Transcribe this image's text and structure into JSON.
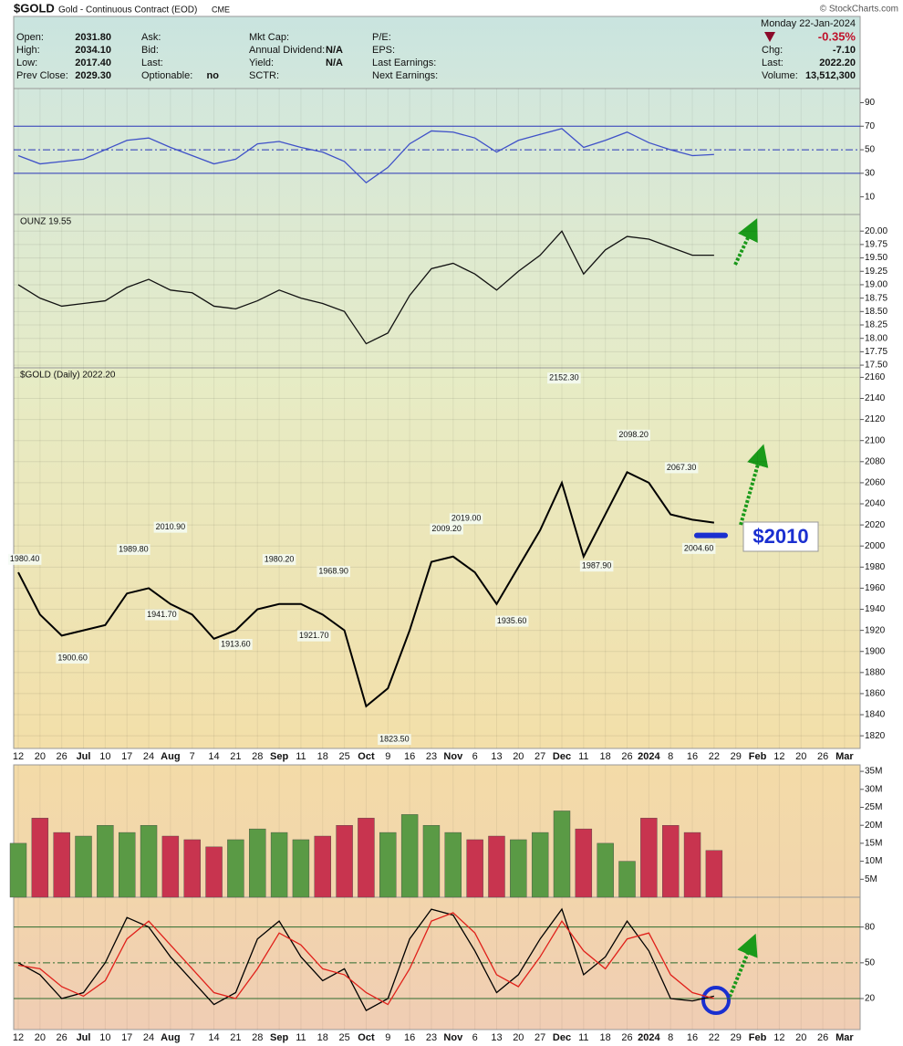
{
  "header": {
    "symbol": "$GOLD",
    "name": "Gold - Continuous Contract (EOD)",
    "exchange": "CME",
    "watermark": "© StockCharts.com",
    "date": "Monday  22-Jan-2024",
    "change_pct": "-0.35%",
    "columns": [
      [
        {
          "label": "Open:",
          "value": "2031.80"
        },
        {
          "label": "High:",
          "value": "2034.10"
        },
        {
          "label": "Low:",
          "value": "2017.40"
        },
        {
          "label": "Prev Close:",
          "value": "2029.30"
        }
      ],
      [
        {
          "label": "Ask:"
        },
        {
          "label": "Bid:"
        },
        {
          "label": "Last:"
        },
        {
          "label": "Optionable:",
          "value": "no"
        }
      ],
      [
        {
          "label": "Mkt Cap:"
        },
        {
          "label": "Annual Dividend:",
          "value": "N/A"
        },
        {
          "label": "Yield:",
          "value": "N/A"
        },
        {
          "label": "SCTR:"
        }
      ],
      [
        {
          "label": "P/E:"
        },
        {
          "label": "EPS:"
        },
        {
          "label": "Last Earnings:"
        },
        {
          "label": "Next Earnings:"
        }
      ]
    ],
    "right": [
      {
        "label": "Chg:",
        "value": "-7.10"
      },
      {
        "label": "Last:",
        "value": "2022.20"
      },
      {
        "label": "Volume:",
        "value": "13,512,300"
      }
    ]
  },
  "chart_data": [
    {
      "type": "line",
      "ylim": [
        -5,
        102
      ],
      "yticks": [
        10,
        30,
        50,
        70,
        90
      ],
      "reference_lines": [
        30,
        50,
        70
      ],
      "series": [
        {
          "color": "#3f51c8",
          "values": [
            45,
            38,
            40,
            42,
            50,
            58,
            60,
            52,
            45,
            38,
            42,
            55,
            57,
            52,
            48,
            40,
            22,
            35,
            55,
            66,
            65,
            60,
            48,
            58,
            63,
            68,
            52,
            58,
            65,
            56,
            50,
            45,
            46,
            null,
            null,
            null,
            null,
            null,
            null
          ]
        }
      ]
    },
    {
      "type": "line",
      "label": "OUNZ 19.55",
      "ylim": [
        17.45,
        20.31
      ],
      "yticks": [
        {
          "value": 17.5,
          "label": "17.50"
        },
        {
          "value": 17.75,
          "label": "17.75"
        },
        {
          "value": 18,
          "label": "18.00"
        },
        {
          "value": 18.25,
          "label": "18.25"
        },
        {
          "value": 18.5,
          "label": "18.50"
        },
        {
          "value": 18.75,
          "label": "18.75"
        },
        {
          "value": 19,
          "label": "19.00"
        },
        {
          "value": 19.25,
          "label": "19.25"
        },
        {
          "value": 19.5,
          "label": "19.50"
        },
        {
          "value": 19.75,
          "label": "19.75"
        },
        {
          "value": 20,
          "label": "20.00"
        }
      ],
      "grid": true,
      "series": [
        {
          "color": "#111111",
          "values": [
            19.0,
            18.75,
            18.6,
            18.65,
            18.7,
            18.95,
            19.1,
            18.9,
            18.85,
            18.6,
            18.55,
            18.7,
            18.9,
            18.75,
            18.65,
            18.5,
            17.9,
            18.1,
            18.8,
            19.3,
            19.4,
            19.2,
            18.9,
            19.25,
            19.55,
            20.0,
            19.2,
            19.65,
            19.9,
            19.85,
            19.7,
            19.55,
            19.55,
            null,
            null,
            null,
            null,
            null,
            null
          ]
        }
      ]
    },
    {
      "type": "line",
      "label": "$GOLD (Daily) 2022.20",
      "ylim": [
        1808,
        2169
      ],
      "yticks": [
        1820,
        1840,
        1860,
        1880,
        1900,
        1920,
        1940,
        1960,
        1980,
        2000,
        2020,
        2040,
        2060,
        2080,
        2100,
        2120,
        2140,
        2160
      ],
      "grid": true,
      "categories": [
        "12",
        "20",
        "26",
        "Jul",
        "10",
        "17",
        "24",
        "Aug",
        "7",
        "14",
        "21",
        "28",
        "Sep",
        "11",
        "18",
        "25",
        "Oct",
        "9",
        "16",
        "23",
        "Nov",
        "6",
        "13",
        "20",
        "27",
        "Dec",
        "11",
        "18",
        "26",
        "2024",
        "8",
        "16",
        "22",
        "29",
        "Feb",
        "12",
        "20",
        "26",
        "Mar"
      ],
      "series": [
        {
          "color": "#000000",
          "values": [
            1975,
            1935,
            1915,
            1920,
            1925,
            1955,
            1960,
            1945,
            1935,
            1912,
            1920,
            1940,
            1945,
            1945,
            1935,
            1920,
            1848,
            1865,
            1920,
            1985,
            1990,
            1975,
            1945,
            1980,
            2015,
            2060,
            1990,
            2030,
            2070,
            2060,
            2030,
            2025,
            2022.2,
            null,
            null,
            null,
            null,
            null,
            null
          ]
        }
      ],
      "annotations": [
        {
          "at": 0.3,
          "value": 1980.4,
          "label": "1980.40"
        },
        {
          "at": 2.5,
          "value": 1900.6,
          "label": "1900.60"
        },
        {
          "at": 5.3,
          "value": 1989.8,
          "label": "1989.80"
        },
        {
          "at": 6.6,
          "value": 1941.7,
          "label": "1941.70"
        },
        {
          "at": 7,
          "value": 2010.9,
          "label": "2010.90"
        },
        {
          "at": 10,
          "value": 1913.6,
          "label": "1913.60"
        },
        {
          "at": 12,
          "value": 1980.2,
          "label": "1980.20"
        },
        {
          "at": 13.6,
          "value": 1921.7,
          "label": "1921.70"
        },
        {
          "at": 14.5,
          "value": 1968.9,
          "label": "1968.90"
        },
        {
          "at": 17.3,
          "value": 1823.5,
          "label": "1823.50"
        },
        {
          "at": 19.7,
          "value": 2009.2,
          "label": "2009.20"
        },
        {
          "at": 20.6,
          "value": 2019.0,
          "label": "2019.00"
        },
        {
          "at": 22.7,
          "value": 1935.6,
          "label": "1935.60"
        },
        {
          "at": 25.1,
          "value": 2152.3,
          "label": "2152.30"
        },
        {
          "at": 26.6,
          "value": 1987.9,
          "label": "1987.90"
        },
        {
          "at": 28.3,
          "value": 2098.2,
          "label": "2098.20"
        },
        {
          "at": 30.5,
          "value": 2067.3,
          "label": "2067.30"
        },
        {
          "at": 31.3,
          "value": 2004.6,
          "label": "2004.60"
        }
      ],
      "callout": {
        "label": "$2010",
        "value": 2010,
        "color": "#1a2fd0"
      }
    },
    {
      "type": "bar",
      "ylim": [
        0,
        36.8
      ],
      "yticks": [
        {
          "value": 5,
          "label": "5M"
        },
        {
          "value": 10,
          "label": "10M"
        },
        {
          "value": 15,
          "label": "15M"
        },
        {
          "value": 20,
          "label": "20M"
        },
        {
          "value": 25,
          "label": "25M"
        },
        {
          "value": 30,
          "label": "30M"
        },
        {
          "value": 35,
          "label": "35M"
        }
      ],
      "up_color": "#5a9a45",
      "down_color": "#c8344f",
      "series": [
        {
          "values": [
            15,
            22,
            18,
            17,
            20,
            18,
            20,
            17,
            16,
            14,
            16,
            19,
            18,
            16,
            17,
            20,
            22,
            18,
            23,
            20,
            18,
            16,
            17,
            16,
            18,
            24,
            19,
            15,
            10,
            22,
            20,
            18,
            13,
            null,
            null,
            null,
            null,
            null,
            null
          ]
        }
      ]
    },
    {
      "type": "line",
      "ylim": [
        -6,
        105
      ],
      "yticks": [
        20,
        50,
        80
      ],
      "reference_lines": [
        20,
        50,
        80
      ],
      "categories": [
        "12",
        "20",
        "26",
        "Jul",
        "10",
        "17",
        "24",
        "Aug",
        "7",
        "14",
        "21",
        "28",
        "Sep",
        "11",
        "18",
        "25",
        "Oct",
        "9",
        "16",
        "23",
        "Nov",
        "6",
        "13",
        "20",
        "27",
        "Dec",
        "11",
        "18",
        "26",
        "2024",
        "8",
        "16",
        "22",
        "29",
        "Feb",
        "12",
        "20",
        "26",
        "Mar"
      ],
      "series": [
        {
          "color": "#000000",
          "values": [
            50,
            40,
            20,
            25,
            50,
            88,
            80,
            55,
            35,
            15,
            25,
            70,
            85,
            55,
            35,
            45,
            10,
            20,
            70,
            95,
            90,
            60,
            25,
            40,
            70,
            95,
            40,
            55,
            85,
            60,
            20,
            18,
            22,
            null,
            null,
            null,
            null,
            null,
            null
          ]
        },
        {
          "color": "#e0201a",
          "values": [
            48,
            45,
            30,
            22,
            35,
            70,
            85,
            65,
            45,
            25,
            20,
            45,
            75,
            65,
            45,
            40,
            25,
            15,
            45,
            85,
            92,
            75,
            40,
            30,
            55,
            85,
            60,
            45,
            70,
            75,
            40,
            25,
            20,
            null,
            null,
            null,
            null,
            null,
            null
          ]
        }
      ]
    }
  ]
}
